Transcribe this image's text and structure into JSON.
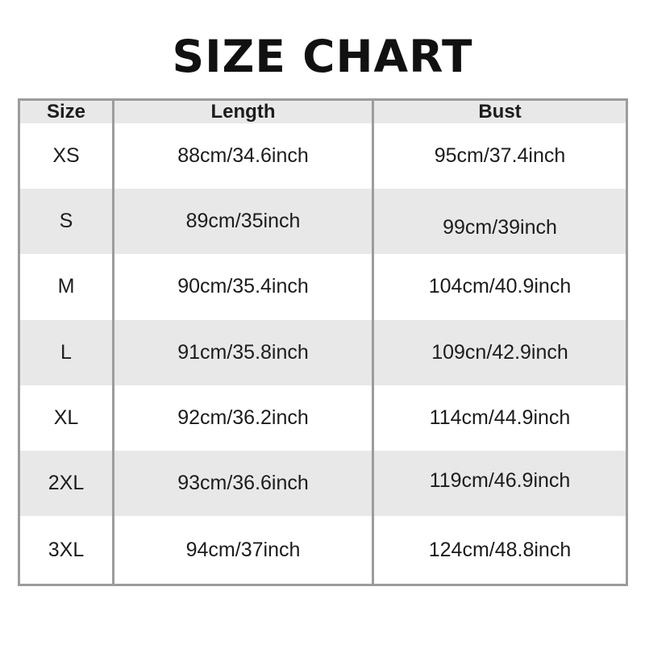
{
  "title": "SIZE CHART",
  "colors": {
    "background": "#ffffff",
    "table_border": "#9c9c9c",
    "row_stripe": "#e8e8e8",
    "text": "#1c1c1c"
  },
  "chart_data": {
    "type": "table",
    "title": "SIZE CHART",
    "columns": [
      "Size",
      "Length",
      "Bust"
    ],
    "rows": [
      {
        "size": "XS",
        "length": "88cm/34.6inch",
        "bust": "95cm/37.4inch"
      },
      {
        "size": "S",
        "length": "89cm/35inch",
        "bust": "99cm/39inch"
      },
      {
        "size": "M",
        "length": "90cm/35.4inch",
        "bust": "104cm/40.9inch"
      },
      {
        "size": "L",
        "length": "91cm/35.8inch",
        "bust": "109cn/42.9inch"
      },
      {
        "size": "XL",
        "length": "92cm/36.2inch",
        "bust": "114cm/44.9inch"
      },
      {
        "size": "2XL",
        "length": "93cm/36.6inch",
        "bust": "119cm/46.9inch"
      },
      {
        "size": "3XL",
        "length": "94cm/37inch",
        "bust": "124cm/48.8inch"
      }
    ]
  }
}
